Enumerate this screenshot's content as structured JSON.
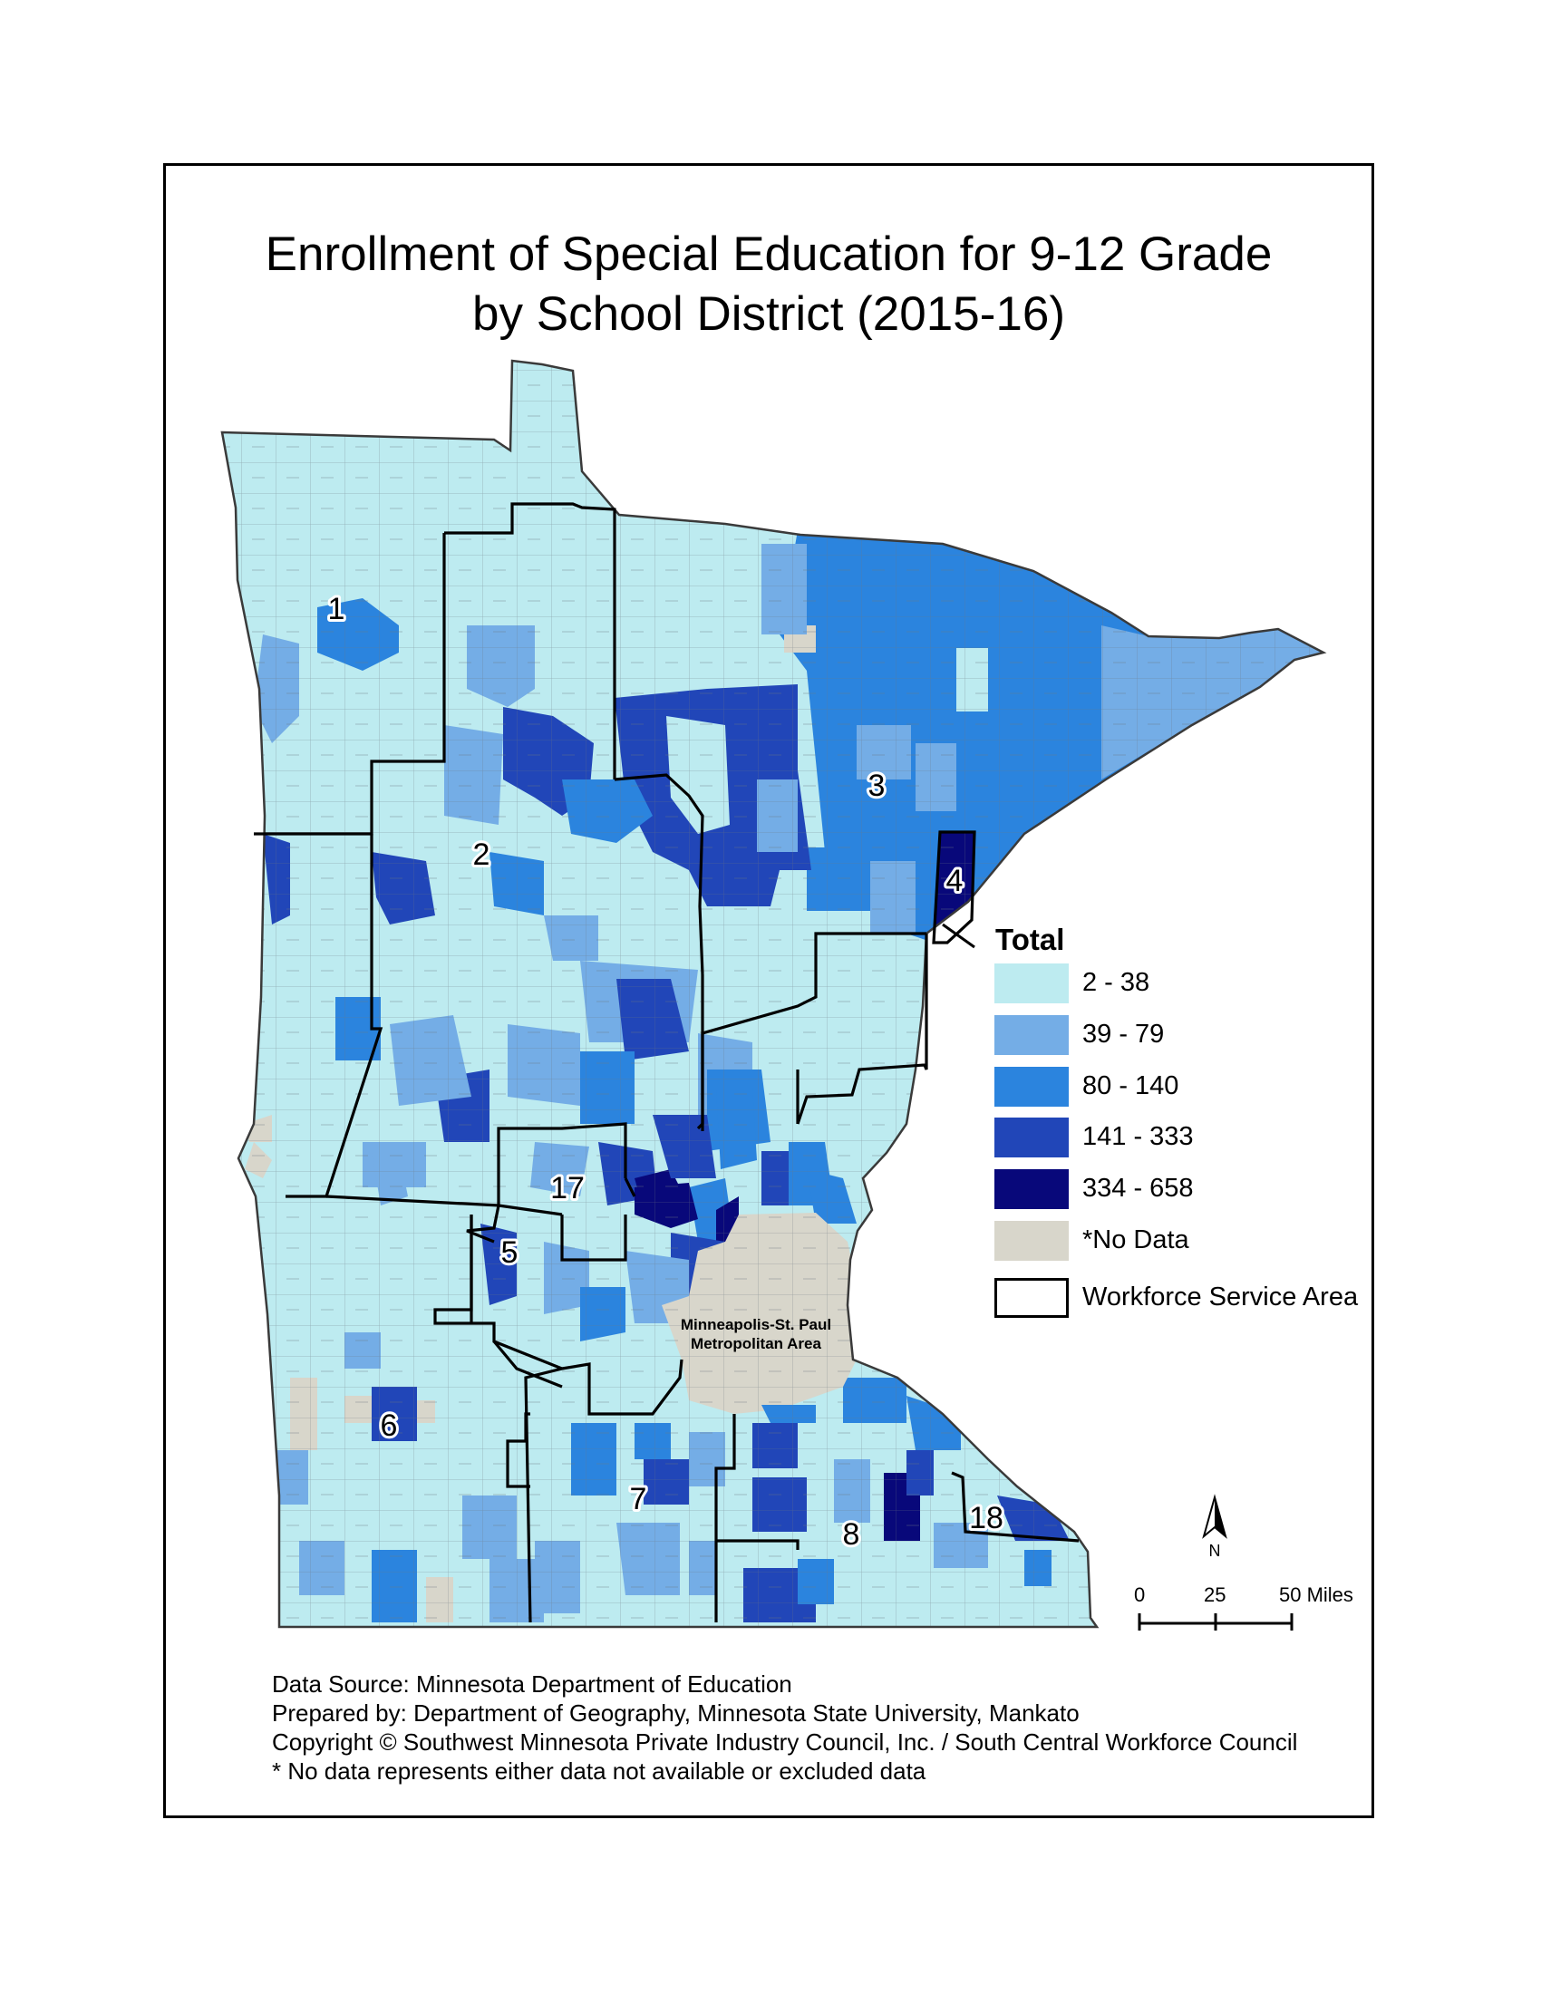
{
  "title_line1": "Enrollment of Special Education for 9-12 Grade",
  "title_line2": "by School District (2015-16)",
  "legend": {
    "title": "Total",
    "classes": [
      {
        "label": "2 - 38",
        "color": "#bdebf0"
      },
      {
        "label": "39 - 79",
        "color": "#74ade6"
      },
      {
        "label": "80 - 140",
        "color": "#2b84de"
      },
      {
        "label": "141 - 333",
        "color": "#2146b8"
      },
      {
        "label": "334 - 658",
        "color": "#08087a"
      },
      {
        "label": "*No Data",
        "color": "#d8d6cb"
      }
    ],
    "boundary_label": "Workforce Service Area"
  },
  "metro_label_line1": "Minneapolis-St. Paul",
  "metro_label_line2": "Metropolitan Area",
  "region_labels": [
    "1",
    "2",
    "3",
    "4",
    "5",
    "6",
    "7",
    "8",
    "17",
    "18"
  ],
  "north_label": "N",
  "scale": {
    "zero": "0",
    "mid": "25",
    "end": "50 Miles"
  },
  "credits": [
    "Data Source: Minnesota Department of Education",
    "Prepared by: Department of Geography, Minnesota State University, Mankato",
    "Copyright © Southwest Minnesota Private Industry Council, Inc. / South Central Workforce Council",
    "* No data represents either data not available or excluded data"
  ]
}
